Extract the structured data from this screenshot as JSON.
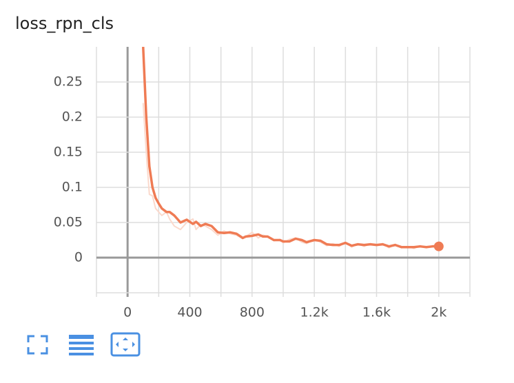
{
  "chart_data": {
    "type": "line",
    "title": "loss_rpn_cls",
    "x": [
      100,
      120,
      140,
      160,
      180,
      200,
      220,
      250,
      270,
      300,
      340,
      380,
      420,
      440,
      470,
      500,
      540,
      580,
      620,
      660,
      700,
      740,
      760,
      800,
      840,
      870,
      900,
      940,
      980,
      1000,
      1040,
      1080,
      1120,
      1150,
      1200,
      1240,
      1280,
      1320,
      1360,
      1400,
      1440,
      1480,
      1520,
      1560,
      1600,
      1640,
      1680,
      1720,
      1760,
      1800,
      1840,
      1880,
      1920,
      1960,
      2000
    ],
    "series": [
      {
        "color": "#fbd9cc",
        "values": [
          0.22,
          0.15,
          0.09,
          0.088,
          0.07,
          0.065,
          0.06,
          0.065,
          0.055,
          0.045,
          0.04,
          0.05,
          0.055,
          0.04,
          0.047,
          0.045,
          0.04,
          0.032,
          0.038,
          0.034,
          0.032,
          0.027,
          0.03,
          0.036,
          0.028,
          0.032,
          0.03,
          0.024,
          0.026,
          0.021,
          0.026,
          0.028,
          0.022,
          0.02,
          0.026,
          0.022,
          0.017,
          0.02,
          0.016,
          0.022,
          0.015,
          0.02,
          0.016,
          0.02,
          0.017,
          0.02,
          0.014,
          0.019,
          0.014,
          0.016,
          0.013,
          0.017,
          0.014,
          0.017,
          0.017
        ]
      },
      {
        "color": "#ef7b54",
        "values": [
          0.3,
          0.2,
          0.13,
          0.1,
          0.085,
          0.077,
          0.07,
          0.065,
          0.065,
          0.06,
          0.05,
          0.054,
          0.048,
          0.051,
          0.045,
          0.048,
          0.045,
          0.036,
          0.035,
          0.036,
          0.034,
          0.028,
          0.03,
          0.031,
          0.033,
          0.03,
          0.03,
          0.025,
          0.025,
          0.023,
          0.023,
          0.027,
          0.025,
          0.022,
          0.025,
          0.024,
          0.019,
          0.018,
          0.018,
          0.021,
          0.017,
          0.019,
          0.018,
          0.019,
          0.018,
          0.019,
          0.016,
          0.018,
          0.015,
          0.015,
          0.015,
          0.016,
          0.015,
          0.016,
          0.016
        ]
      }
    ],
    "xlim": [
      -200,
      2200
    ],
    "ylim": [
      -0.05,
      0.3
    ],
    "xticks": [
      0,
      400,
      800,
      {
        "value": 1200,
        "label": "1.2k"
      },
      {
        "value": 1600,
        "label": "1.6k"
      },
      {
        "value": 2000,
        "label": "2k"
      }
    ],
    "yticks": [
      0,
      0.05,
      0.1,
      0.15,
      0.2,
      0.25
    ],
    "xgrid": [
      -200,
      0,
      200,
      400,
      600,
      800,
      1000,
      1200,
      1400,
      1600,
      1800,
      2000,
      2200
    ],
    "ygrid": [
      -0.05,
      0,
      0.05,
      0.1,
      0.15,
      0.2,
      0.25
    ],
    "grid": true
  }
}
